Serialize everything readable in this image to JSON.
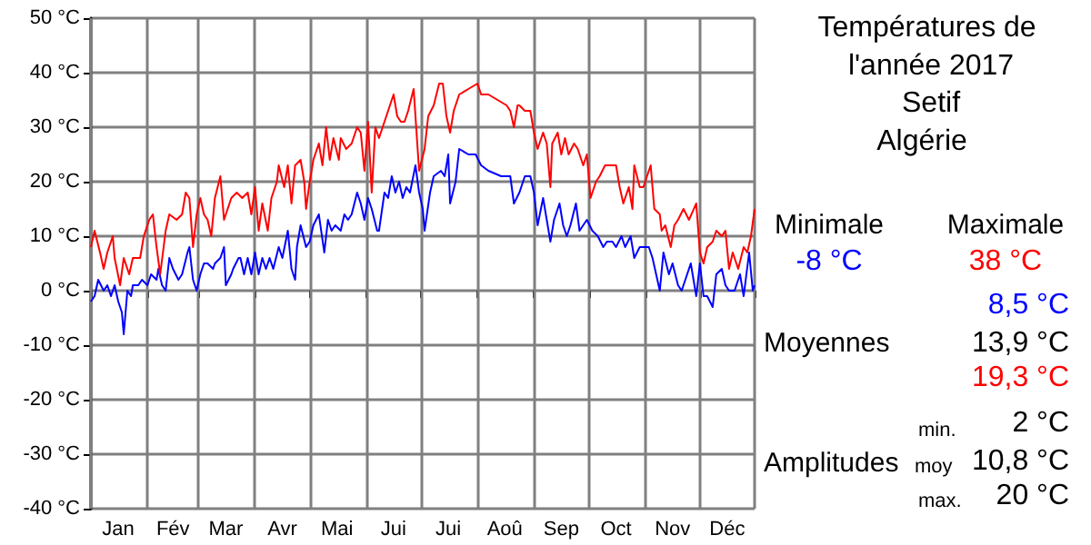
{
  "chart_data": {
    "type": "line",
    "title": "Températures de l'année 2017",
    "subtitle": "Setif",
    "annotations": [
      "Algérie",
      "Minimale",
      "Maximale",
      "-8 °C",
      "38 °C",
      "8,5 °C",
      "Moyennes",
      "13,9 °C",
      "19,3 °C",
      "min.",
      "2 °C",
      "Amplitudes",
      "moy",
      "10,8 °C",
      "max.",
      "20 °C"
    ],
    "xlim": [
      "--01-01",
      "--12-31"
    ],
    "xticks": [
      {
        "value": "--01-01",
        "label": null
      },
      {
        "value": "--01-16",
        "label": "Jan"
      },
      {
        "value": "--02-01",
        "label": null
      },
      {
        "value": "--02-15",
        "label": "Fév"
      },
      {
        "value": "--03-01",
        "label": null
      },
      {
        "value": "--03-16",
        "label": "Mar"
      },
      {
        "value": "--04-01",
        "label": null
      },
      {
        "value": "--04-16",
        "label": "Avr"
      },
      {
        "value": "--05-01",
        "label": null
      },
      {
        "value": "--05-16",
        "label": "Mai"
      },
      {
        "value": "--06-01",
        "label": null
      },
      {
        "value": "--06-16",
        "label": "Jui"
      },
      {
        "value": "--07-01",
        "label": null
      },
      {
        "value": "--07-16",
        "label": "Jui"
      },
      {
        "value": "--08-01",
        "label": null
      },
      {
        "value": "--08-16",
        "label": "Aoû"
      },
      {
        "value": "--09-01",
        "label": null
      },
      {
        "value": "--09-16",
        "label": "Sep"
      },
      {
        "value": "--10-01",
        "label": null
      },
      {
        "value": "--10-16",
        "label": "Oct"
      },
      {
        "value": "--11-01",
        "label": null
      },
      {
        "value": "--11-16",
        "label": "Nov"
      },
      {
        "value": "--12-01",
        "label": null
      },
      {
        "value": "--12-16",
        "label": "Déc"
      },
      {
        "value": "--12-31",
        "label": null
      }
    ],
    "ylim": [
      -40,
      50
    ],
    "yticks": [
      {
        "value": -40,
        "label": "-40 °C"
      },
      {
        "value": -30,
        "label": "-30 °C"
      },
      {
        "value": -20,
        "label": "-20 °C"
      },
      {
        "value": -10,
        "label": "-10 °C"
      },
      {
        "value": 0,
        "label": "0 °C"
      },
      {
        "value": 10,
        "label": "10 °C"
      },
      {
        "value": 20,
        "label": "20 °C"
      },
      {
        "value": 30,
        "label": "30 °C"
      },
      {
        "value": 40,
        "label": "40 °C"
      },
      {
        "value": 50,
        "label": "50 °C"
      }
    ],
    "grid": true,
    "legend": false,
    "marker": "none",
    "line_style": "solid",
    "series": [
      {
        "color": "#0000ff",
        "x": [
          "--01-01",
          "--01-03",
          "--01-05",
          "--01-08",
          "--01-10",
          "--01-12",
          "--01-14",
          "--01-16",
          "--01-18",
          "--01-19",
          "--01-21",
          "--01-23",
          "--01-24",
          "--01-27",
          "--01-29",
          "--02-01",
          "--02-03",
          "--02-06",
          "--02-07",
          "--02-09",
          "--02-11",
          "--02-13",
          "--02-15",
          "--02-18",
          "--02-20",
          "--02-23",
          "--02-24",
          "--02-26",
          "--02-28",
          "--03-02",
          "--03-04",
          "--03-06",
          "--03-09",
          "--03-10",
          "--03-13",
          "--03-15",
          "--03-16",
          "--03-19",
          "--03-20",
          "--03-23",
          "--03-24",
          "--03-26",
          "--03-28",
          "--03-30",
          "--04-01",
          "--04-03",
          "--04-05",
          "--04-07",
          "--04-09",
          "--04-11",
          "--04-14",
          "--04-16",
          "--04-19",
          "--04-21",
          "--04-23",
          "--04-24",
          "--04-26",
          "--04-29",
          "--05-01",
          "--05-03",
          "--05-06",
          "--05-09",
          "--05-11",
          "--05-13",
          "--05-15",
          "--05-18",
          "--05-20",
          "--05-22",
          "--05-24",
          "--05-27",
          "--05-29",
          "--05-31",
          "--06-02",
          "--06-04",
          "--06-07",
          "--06-08",
          "--06-11",
          "--06-13",
          "--06-15",
          "--06-17",
          "--06-19",
          "--06-21",
          "--06-23",
          "--06-25",
          "--06-28",
          "--06-30",
          "--07-02",
          "--07-03",
          "--07-06",
          "--07-08",
          "--07-12",
          "--07-14",
          "--07-16",
          "--07-17",
          "--07-20",
          "--07-22",
          "--07-27",
          "--07-31",
          "--08-03",
          "--08-07",
          "--08-14",
          "--08-19",
          "--08-21",
          "--08-24",
          "--08-27",
          "--08-30",
          "--09-01",
          "--09-03",
          "--09-06",
          "--09-08",
          "--09-10",
          "--09-12",
          "--09-15",
          "--09-17",
          "--09-19",
          "--09-21",
          "--09-24",
          "--09-26",
          "--09-28",
          "--09-30",
          "--10-03",
          "--10-06",
          "--10-09",
          "--10-11",
          "--10-14",
          "--10-16",
          "--10-19",
          "--10-21",
          "--10-24",
          "--10-26",
          "--10-29",
          "--10-31",
          "--11-03",
          "--11-05",
          "--11-09",
          "--11-11",
          "--11-14",
          "--11-16",
          "--11-19",
          "--11-21",
          "--11-24",
          "--11-26",
          "--11-29",
          "--12-01",
          "--12-03",
          "--12-05",
          "--12-08",
          "--12-10",
          "--12-13",
          "--12-15",
          "--12-17",
          "--12-20",
          "--12-23",
          "--12-25",
          "--12-28",
          "--12-30",
          "--12-31"
        ],
        "values": [
          -2,
          -1,
          2,
          0,
          1,
          -1,
          1,
          -2,
          -4,
          -8,
          0,
          -1,
          1,
          1,
          2,
          1,
          3,
          2,
          4,
          1,
          0,
          6,
          4,
          2,
          3,
          7,
          8,
          2,
          0,
          3,
          5,
          5,
          4,
          5,
          6,
          8,
          1,
          3,
          4,
          6,
          6,
          3,
          6,
          3,
          7,
          3,
          6,
          4,
          6,
          4,
          8,
          6,
          11,
          4,
          2,
          8,
          12,
          8,
          9,
          12,
          14,
          7,
          13,
          11,
          12,
          11,
          14,
          13,
          14,
          18,
          16,
          13,
          17,
          15,
          11,
          11,
          18,
          17,
          21,
          18,
          20,
          17,
          19,
          18,
          23,
          18,
          15,
          11,
          18,
          21,
          22,
          21,
          25,
          16,
          20,
          26,
          25,
          25,
          23,
          22,
          21,
          21,
          16,
          18,
          21,
          21,
          18,
          12,
          17,
          13,
          9,
          13,
          16,
          12,
          10,
          12,
          16,
          11,
          12,
          13,
          11,
          10,
          8,
          9,
          9,
          8,
          10,
          8,
          10,
          6,
          8,
          8,
          8,
          6,
          0,
          7,
          3,
          5,
          1,
          0,
          3,
          5,
          -1,
          5,
          -1,
          -1,
          -3,
          3,
          4,
          1,
          0,
          0,
          3,
          -1,
          7,
          0,
          1
        ]
      },
      {
        "color": "#ff0000",
        "x": [
          "--01-01",
          "--01-03",
          "--01-06",
          "--01-08",
          "--01-10",
          "--01-13",
          "--01-14",
          "--01-17",
          "--01-19",
          "--01-22",
          "--01-24",
          "--01-28",
          "--01-30",
          "--02-02",
          "--02-04",
          "--02-06",
          "--02-08",
          "--02-11",
          "--02-13",
          "--02-17",
          "--02-20",
          "--02-22",
          "--02-24",
          "--02-26",
          "--02-28",
          "--03-02",
          "--03-04",
          "--03-06",
          "--03-08",
          "--03-10",
          "--03-13",
          "--03-15",
          "--03-19",
          "--03-22",
          "--03-25",
          "--03-28",
          "--03-30",
          "--04-01",
          "--04-03",
          "--04-05",
          "--04-08",
          "--04-10",
          "--04-13",
          "--04-14",
          "--04-17",
          "--04-19",
          "--04-21",
          "--04-23",
          "--04-26",
          "--04-28",
          "--04-29",
          "--05-01",
          "--05-03",
          "--05-06",
          "--05-08",
          "--05-10",
          "--05-12",
          "--05-14",
          "--05-17",
          "--05-18",
          "--05-21",
          "--05-24",
          "--05-27",
          "--05-29",
          "--05-31",
          "--06-02",
          "--06-04",
          "--06-06",
          "--06-08",
          "--06-11",
          "--06-13",
          "--06-16",
          "--06-18",
          "--06-20",
          "--06-22",
          "--06-24",
          "--06-27",
          "--06-28",
          "--06-30",
          "--07-03",
          "--07-05",
          "--07-08",
          "--07-11",
          "--07-13",
          "--07-15",
          "--07-17",
          "--07-19",
          "--07-22",
          "--07-27",
          "--08-01",
          "--08-03",
          "--08-07",
          "--08-12",
          "--08-17",
          "--08-19",
          "--08-21",
          "--08-23",
          "--08-24",
          "--08-27",
          "--08-30",
          "--09-01",
          "--09-03",
          "--09-06",
          "--09-08",
          "--09-10",
          "--09-11",
          "--09-14",
          "--09-16",
          "--09-18",
          "--09-20",
          "--09-23",
          "--09-25",
          "--09-28",
          "--09-30",
          "--10-02",
          "--10-05",
          "--10-07",
          "--10-10",
          "--10-13",
          "--10-16",
          "--10-18",
          "--10-20",
          "--10-23",
          "--10-25",
          "--10-26",
          "--10-29",
          "--10-31",
          "--11-04",
          "--11-06",
          "--11-09",
          "--11-10",
          "--11-12",
          "--11-15",
          "--11-17",
          "--11-19",
          "--11-22",
          "--11-25",
          "--11-29",
          "--12-01",
          "--12-03",
          "--12-05",
          "--12-08",
          "--12-10",
          "--12-13",
          "--12-15",
          "--12-17",
          "--12-19",
          "--12-22",
          "--12-25",
          "--12-27",
          "--12-29",
          "--12-31"
        ],
        "values": [
          8,
          11,
          7,
          4,
          7,
          10,
          6,
          1,
          6,
          3,
          6,
          6,
          10,
          13,
          14,
          8,
          3,
          11,
          14,
          13,
          14,
          18,
          17,
          8,
          14,
          17,
          14,
          13,
          10,
          17,
          21,
          13,
          17,
          18,
          17,
          18,
          14,
          19,
          11,
          16,
          11,
          17,
          20,
          23,
          19,
          23,
          16,
          23,
          24,
          20,
          15,
          20,
          24,
          27,
          23,
          30,
          24,
          28,
          24,
          28,
          26,
          27,
          30,
          29,
          22,
          31,
          18,
          30,
          28,
          31,
          33,
          36,
          32,
          31,
          31,
          33,
          37,
          32,
          22,
          26,
          32,
          34,
          38,
          38,
          32,
          29,
          33,
          36,
          37,
          38,
          36,
          36,
          35,
          34,
          33,
          30,
          34,
          34,
          33,
          33,
          29,
          26,
          29,
          27,
          19,
          27,
          29,
          25,
          28,
          25,
          27,
          26,
          23,
          25,
          17,
          20,
          21,
          23,
          23,
          23,
          19,
          16,
          19,
          15,
          23,
          19,
          19,
          23,
          15,
          14,
          11,
          12,
          8,
          12,
          13,
          15,
          13,
          16,
          7,
          5,
          8,
          9,
          11,
          10,
          11,
          4,
          7,
          4,
          8,
          7,
          10,
          15
        ]
      }
    ]
  }
}
